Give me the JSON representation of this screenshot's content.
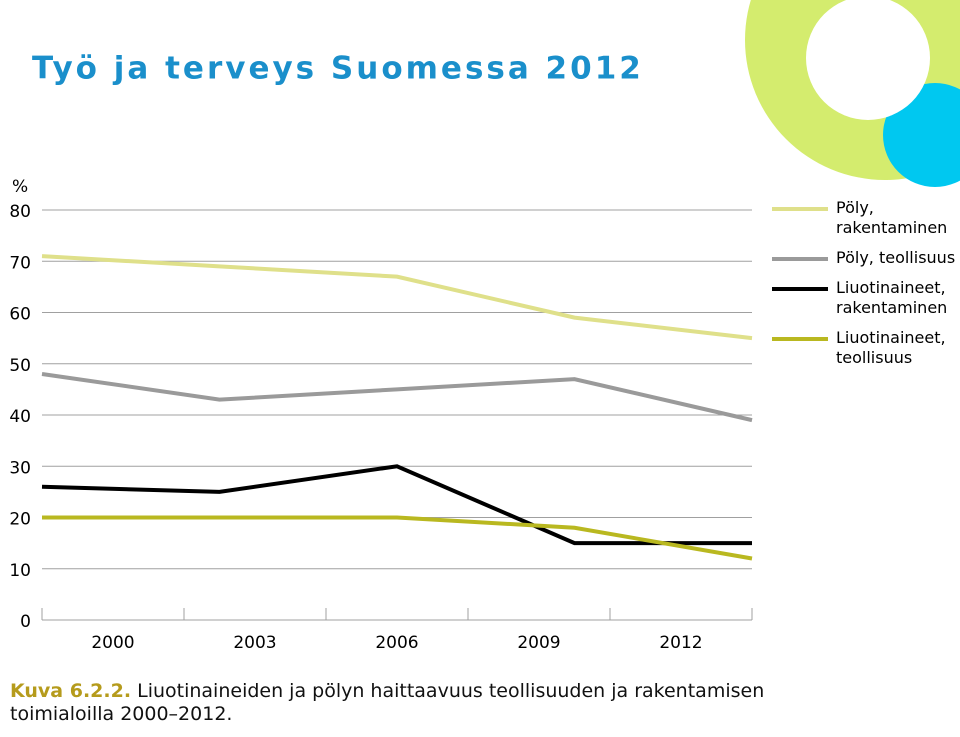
{
  "header": {
    "title": "Työ ja terveys Suomessa 2012"
  },
  "caption": {
    "label": "Kuva 6.2.2.",
    "text": "Liuotinaineiden ja pölyn haittaavuus teollisuuden ja rakentamisen toimialoilla 2000–2012."
  },
  "chart_data": {
    "type": "line",
    "y_unit": "%",
    "categories": [
      "2000",
      "2003",
      "2006",
      "2009",
      "2012"
    ],
    "series": [
      {
        "name": "Pöly, rakentaminen",
        "color": "#dfe08a",
        "values": [
          71,
          69,
          67,
          59,
          55
        ]
      },
      {
        "name": "Pöly, teollisuus",
        "color": "#9a9a9a",
        "values": [
          48,
          43,
          45,
          47,
          39
        ]
      },
      {
        "name": "Liuotinaineet, rakentaminen",
        "color": "#000000",
        "values": [
          26,
          25,
          30,
          15,
          15
        ]
      },
      {
        "name": "Liuotinaineet, teollisuus",
        "color": "#b9b820",
        "values": [
          20,
          20,
          20,
          18,
          12
        ]
      }
    ],
    "ylim": [
      0,
      80
    ],
    "yticks": [
      0,
      10,
      20,
      30,
      40,
      50,
      60,
      70,
      80
    ],
    "grid": true,
    "legend": "right"
  }
}
